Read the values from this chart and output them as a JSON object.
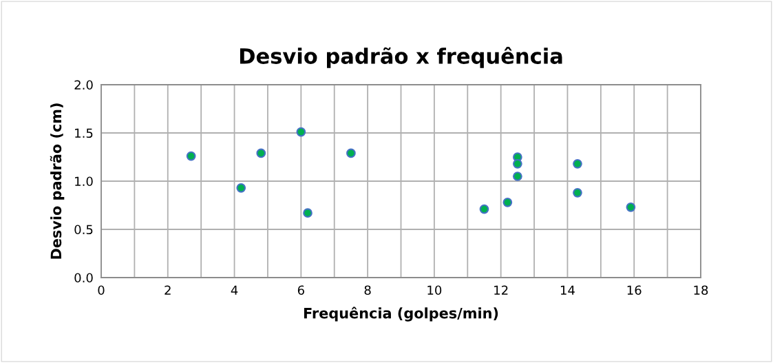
{
  "chart_data": {
    "type": "scatter",
    "title": "Desvio padrão x frequência",
    "xlabel": "Frequência (golpes/min)",
    "ylabel": "Desvio padrão (cm)",
    "x": [
      2.7,
      4.2,
      4.8,
      6.0,
      6.2,
      7.5,
      11.5,
      12.2,
      12.5,
      12.5,
      12.5,
      14.3,
      14.3,
      15.9
    ],
    "series": [
      {
        "color": "#00b050",
        "values": [
          1.26,
          0.93,
          1.29,
          1.51,
          0.67,
          1.29,
          0.71,
          0.78,
          1.25,
          1.18,
          1.05,
          1.18,
          0.88,
          0.73
        ]
      }
    ],
    "xlim": [
      0,
      18
    ],
    "ylim": [
      0,
      2.0
    ],
    "xticks": [
      0,
      {
        "value": 1,
        "label": null
      },
      2,
      {
        "value": 3,
        "label": null
      },
      4,
      {
        "value": 5,
        "label": null
      },
      6,
      {
        "value": 7,
        "label": null
      },
      8,
      {
        "value": 9,
        "label": null
      },
      10,
      {
        "value": 11,
        "label": null
      },
      12,
      {
        "value": 13,
        "label": null
      },
      14,
      {
        "value": 15,
        "label": null
      },
      16,
      {
        "value": 17,
        "label": null
      },
      18
    ],
    "yticks": [
      {
        "value": 0,
        "label": "0.0"
      },
      0.5,
      {
        "value": 1,
        "label": "1.0"
      },
      1.5,
      {
        "value": 2,
        "label": "2.0"
      }
    ],
    "grid": true,
    "marker": "circle",
    "legend": false
  }
}
